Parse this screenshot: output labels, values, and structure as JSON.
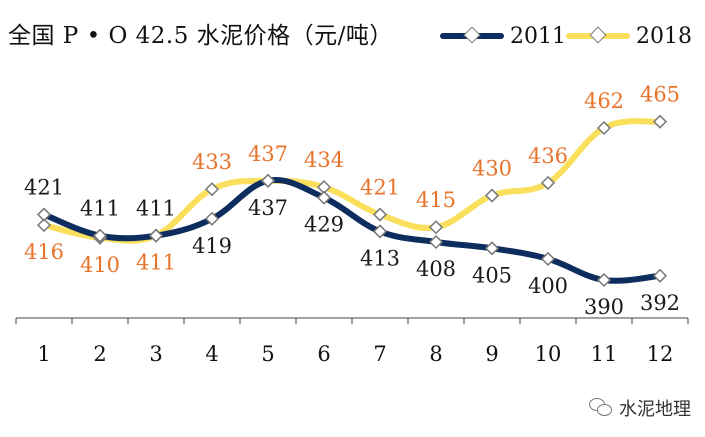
{
  "title": "全国 P • O 42.5 水泥价格（元/吨）",
  "watermark": "水泥地理",
  "chart_data": {
    "type": "line",
    "categories": [
      "1",
      "2",
      "3",
      "4",
      "5",
      "6",
      "7",
      "8",
      "9",
      "10",
      "11",
      "12"
    ],
    "series": [
      {
        "name": "2011",
        "color": "#0d2d5e",
        "values": [
          421,
          411,
          411,
          419,
          437,
          429,
          413,
          408,
          405,
          400,
          390,
          392
        ]
      },
      {
        "name": "2018",
        "color": "#f9df5b",
        "values": [
          416,
          410,
          411,
          433,
          437,
          434,
          421,
          415,
          430,
          436,
          462,
          465
        ]
      }
    ],
    "label_colors": {
      "2011": "#1a1a1a",
      "2018": "#e8732a"
    },
    "ylim": [
      372,
      480
    ],
    "grid": false,
    "legend": "top-right",
    "marker": "diamond"
  }
}
